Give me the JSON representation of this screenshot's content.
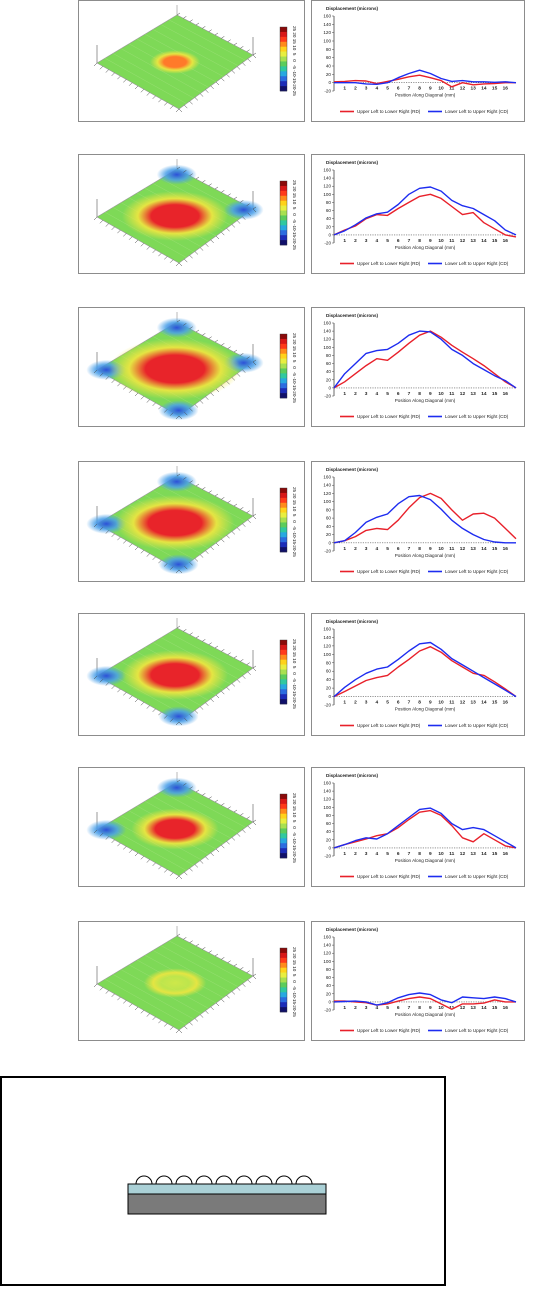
{
  "colors": {
    "series_ul_lr": "#e8202a",
    "series_ll_ur": "#1d2cf0",
    "map_green": "#7ed957",
    "map_red": "#e8242a",
    "map_yellow": "#f0e640",
    "map_blue": "#2c50d8",
    "substrate": "#aad0d6",
    "board": "#7a7a7a",
    "panel_border": "#8c8c8c"
  },
  "chart_common": {
    "title": "Displacement (microns)",
    "xlabel": "Position Along Diagonal (mm)",
    "legend": [
      "Upper Left to Lower Right (RD)",
      "Lower Left to Upper Right (CD)"
    ],
    "x_ticks": [
      "1",
      "2",
      "3",
      "4",
      "5",
      "6",
      "7",
      "8",
      "9",
      "10",
      "11",
      "12",
      "13",
      "14",
      "15",
      "16"
    ],
    "y_ticks": [
      "160",
      "140",
      "120",
      "100",
      "80",
      "60",
      "40",
      "20",
      "0",
      "-20"
    ]
  },
  "colorbar_ticks": [
    "25",
    "20",
    "15",
    "10",
    "5",
    "0",
    "-5",
    "-10",
    "-15",
    "-20",
    "-25"
  ],
  "chart_data": [
    {
      "type": "line",
      "title": "Displacement (microns)",
      "ylim": [
        -20,
        160
      ],
      "xlim": [
        0,
        17
      ],
      "series": [
        {
          "name": "Upper Left to Lower Right (RD)",
          "x": [
            0,
            1,
            2,
            3,
            4,
            5,
            6,
            7,
            8,
            9,
            10,
            11,
            12,
            13,
            14,
            15,
            16,
            17
          ],
          "values": [
            2,
            3,
            5,
            4,
            -2,
            3,
            8,
            14,
            18,
            12,
            5,
            -10,
            0,
            -5,
            -3,
            -2,
            0,
            0
          ]
        },
        {
          "name": "Lower Left to Upper Right (CD)",
          "x": [
            0,
            1,
            2,
            3,
            4,
            5,
            6,
            7,
            8,
            9,
            10,
            11,
            12,
            13,
            14,
            15,
            16,
            17
          ],
          "values": [
            0,
            0,
            0,
            -3,
            -4,
            0,
            12,
            22,
            30,
            22,
            10,
            3,
            5,
            2,
            2,
            1,
            2,
            0
          ]
        }
      ]
    },
    {
      "type": "line",
      "title": "Displacement (microns)",
      "ylim": [
        -20,
        160
      ],
      "xlim": [
        0,
        17
      ],
      "series": [
        {
          "name": "Upper Left to Lower Right (RD)",
          "x": [
            0,
            1,
            2,
            3,
            4,
            5,
            6,
            7,
            8,
            9,
            10,
            11,
            12,
            13,
            14,
            15,
            16,
            17
          ],
          "values": [
            0,
            12,
            22,
            40,
            50,
            48,
            65,
            80,
            95,
            100,
            90,
            70,
            50,
            55,
            30,
            15,
            0,
            -5
          ]
        },
        {
          "name": "Lower Left to Upper Right (CD)",
          "x": [
            0,
            1,
            2,
            3,
            4,
            5,
            6,
            7,
            8,
            9,
            10,
            11,
            12,
            13,
            14,
            15,
            16,
            17
          ],
          "values": [
            0,
            10,
            25,
            42,
            52,
            56,
            75,
            100,
            115,
            118,
            108,
            85,
            72,
            65,
            50,
            35,
            12,
            0
          ]
        }
      ]
    },
    {
      "type": "line",
      "title": "Displacement (microns)",
      "ylim": [
        -20,
        160
      ],
      "xlim": [
        0,
        17
      ],
      "series": [
        {
          "name": "Upper Left to Lower Right (RD)",
          "x": [
            0,
            1,
            2,
            3,
            4,
            5,
            6,
            7,
            8,
            9,
            10,
            11,
            12,
            13,
            14,
            15,
            16,
            17
          ],
          "values": [
            0,
            15,
            35,
            55,
            72,
            68,
            88,
            110,
            130,
            140,
            125,
            105,
            88,
            72,
            55,
            35,
            15,
            0
          ]
        },
        {
          "name": "Lower Left to Upper Right (CD)",
          "x": [
            0,
            1,
            2,
            3,
            4,
            5,
            6,
            7,
            8,
            9,
            10,
            11,
            12,
            13,
            14,
            15,
            16,
            17
          ],
          "values": [
            0,
            35,
            60,
            85,
            92,
            95,
            110,
            130,
            140,
            138,
            120,
            95,
            80,
            60,
            45,
            30,
            18,
            0
          ]
        }
      ]
    },
    {
      "type": "line",
      "title": "Displacement (microns)",
      "ylim": [
        -20,
        160
      ],
      "xlim": [
        0,
        17
      ],
      "series": [
        {
          "name": "Upper Left to Lower Right (RD)",
          "x": [
            0,
            1,
            2,
            3,
            4,
            5,
            6,
            7,
            8,
            9,
            10,
            11,
            12,
            13,
            14,
            15,
            16,
            17
          ],
          "values": [
            0,
            5,
            15,
            30,
            35,
            32,
            55,
            85,
            110,
            120,
            108,
            80,
            55,
            70,
            72,
            60,
            35,
            10
          ]
        },
        {
          "name": "Lower Left to Upper Right (CD)",
          "x": [
            0,
            1,
            2,
            3,
            4,
            5,
            6,
            7,
            8,
            9,
            10,
            11,
            12,
            13,
            14,
            15,
            16,
            17
          ],
          "values": [
            0,
            5,
            25,
            50,
            62,
            70,
            95,
            112,
            115,
            105,
            82,
            55,
            35,
            20,
            8,
            2,
            0,
            0
          ]
        }
      ]
    },
    {
      "type": "line",
      "title": "Displacement (microns)",
      "ylim": [
        -20,
        160
      ],
      "xlim": [
        0,
        17
      ],
      "series": [
        {
          "name": "Upper Left to Lower Right (RD)",
          "x": [
            0,
            1,
            2,
            3,
            4,
            5,
            6,
            7,
            8,
            9,
            10,
            11,
            12,
            13,
            14,
            15,
            16,
            17
          ],
          "values": [
            0,
            12,
            25,
            38,
            45,
            50,
            70,
            88,
            108,
            118,
            105,
            85,
            70,
            55,
            50,
            35,
            18,
            0
          ]
        },
        {
          "name": "Lower Left to Upper Right (CD)",
          "x": [
            0,
            1,
            2,
            3,
            4,
            5,
            6,
            7,
            8,
            9,
            10,
            11,
            12,
            13,
            14,
            15,
            16,
            17
          ],
          "values": [
            0,
            22,
            40,
            55,
            65,
            70,
            88,
            108,
            125,
            128,
            112,
            90,
            75,
            60,
            45,
            30,
            15,
            0
          ]
        }
      ]
    },
    {
      "type": "line",
      "title": "Displacement (microns)",
      "ylim": [
        -20,
        160
      ],
      "xlim": [
        0,
        17
      ],
      "series": [
        {
          "name": "Upper Left to Lower Right (RD)",
          "x": [
            0,
            1,
            2,
            3,
            4,
            5,
            6,
            7,
            8,
            9,
            10,
            11,
            12,
            13,
            14,
            15,
            16,
            17
          ],
          "values": [
            0,
            8,
            15,
            22,
            30,
            35,
            50,
            70,
            88,
            92,
            80,
            55,
            25,
            15,
            35,
            20,
            5,
            0
          ]
        },
        {
          "name": "Lower Left to Upper Right (CD)",
          "x": [
            0,
            1,
            2,
            3,
            4,
            5,
            6,
            7,
            8,
            9,
            10,
            11,
            12,
            13,
            14,
            15,
            16,
            17
          ],
          "values": [
            0,
            8,
            18,
            25,
            22,
            35,
            55,
            75,
            95,
            98,
            85,
            60,
            45,
            50,
            45,
            30,
            15,
            0
          ]
        }
      ]
    },
    {
      "type": "line",
      "title": "Displacement (microns)",
      "ylim": [
        -20,
        160
      ],
      "xlim": [
        0,
        17
      ],
      "series": [
        {
          "name": "Upper Left to Lower Right (RD)",
          "x": [
            0,
            1,
            2,
            3,
            4,
            5,
            6,
            7,
            8,
            9,
            10,
            11,
            12,
            13,
            14,
            15,
            16,
            17
          ],
          "values": [
            2,
            2,
            0,
            -2,
            -8,
            -5,
            2,
            8,
            12,
            8,
            -5,
            -18,
            -5,
            -5,
            -3,
            5,
            0,
            0
          ]
        },
        {
          "name": "Lower Left to Upper Right (CD)",
          "x": [
            0,
            1,
            2,
            3,
            4,
            5,
            6,
            7,
            8,
            9,
            10,
            11,
            12,
            13,
            14,
            15,
            16,
            17
          ],
          "values": [
            0,
            1,
            2,
            0,
            -8,
            -2,
            10,
            18,
            22,
            18,
            5,
            -2,
            12,
            10,
            8,
            12,
            8,
            0
          ]
        }
      ]
    }
  ],
  "maps": [
    {
      "hot_level": 0.35,
      "hot_size": 0.16,
      "cold_corners": []
    },
    {
      "hot_level": 1.0,
      "hot_size": 0.34,
      "cold_corners": [
        "back",
        "right"
      ]
    },
    {
      "hot_level": 1.0,
      "hot_size": 0.42,
      "cold_corners": [
        "back",
        "left",
        "right",
        "front"
      ]
    },
    {
      "hot_level": 1.0,
      "hot_size": 0.38,
      "cold_corners": [
        "back",
        "left",
        "front"
      ]
    },
    {
      "hot_level": 1.0,
      "hot_size": 0.34,
      "cold_corners": [
        "left",
        "front"
      ]
    },
    {
      "hot_level": 0.85,
      "hot_size": 0.28,
      "cold_corners": [
        "back",
        "left"
      ]
    },
    {
      "hot_level": 0.2,
      "hot_size": 0.2,
      "cold_corners": []
    }
  ],
  "schematic": {
    "bumps": 9
  }
}
